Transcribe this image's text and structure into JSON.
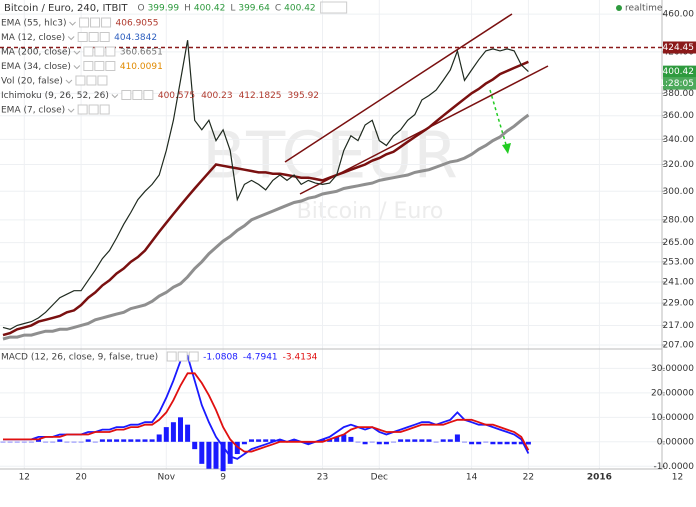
{
  "chart_data": [
    {
      "type": "line",
      "title": "Bitcoin / Euro, 240, ITBIT",
      "ohlc": [
        {
          "label": "O",
          "value": 399.99
        },
        {
          "label": "H",
          "value": 400.42
        },
        {
          "label": "L",
          "value": 399.64
        },
        {
          "label": "C",
          "value": 400.42
        }
      ],
      "status": "realtime",
      "watermark": [
        "BTCEUR",
        "Bitcoin / Euro"
      ],
      "studies": [
        {
          "name": "EMA (55, hlc3)",
          "color": "#b03a2e",
          "values": [
            406.9055
          ]
        },
        {
          "name": "MA (12, close)",
          "color": "#2e5fbf",
          "values": [
            404.3842
          ]
        },
        {
          "name": "MA (200, close)",
          "color": "#777777",
          "values": [
            360.6651
          ]
        },
        {
          "name": "EMA (34, close)",
          "color": "#e08a00",
          "values": [
            410.0091
          ]
        },
        {
          "name": "Vol (20, false)",
          "color": "#777777",
          "values": []
        },
        {
          "name": "Ichimoku (9, 26, 52, 26)",
          "color": "#b03a2e",
          "values": [
            400.575,
            400.23,
            412.1825,
            395.92
          ]
        },
        {
          "name": "EMA (7, close)",
          "color": "#777777",
          "values": []
        }
      ],
      "log_scale": true,
      "grid": true,
      "ylim": [
        205.5,
        476
      ],
      "yticks": [
        {
          "value": 460,
          "label": "460.00"
        },
        {
          "value": 420,
          "label": "420.00"
        },
        {
          "value": 380,
          "label": "380.00"
        },
        {
          "value": 360,
          "label": "360.00"
        },
        {
          "value": 340,
          "label": "340.00"
        },
        {
          "value": 320,
          "label": "320.00"
        },
        {
          "value": 300,
          "label": "300.00"
        },
        {
          "value": 280,
          "label": "280.00"
        },
        {
          "value": 265,
          "label": "265.00"
        },
        {
          "value": 253,
          "label": "253.00"
        },
        {
          "value": 241,
          "label": "241.00"
        },
        {
          "value": 229,
          "label": "229.00"
        },
        {
          "value": 217,
          "label": "217.00"
        },
        {
          "value": 207,
          "label": "207.00"
        }
      ],
      "price_tags": [
        {
          "value": 424.45,
          "color": "#8b1a1a"
        },
        {
          "value": 400.42,
          "color": "#2e9a3e",
          "countdown": "1:28:05"
        }
      ],
      "categories": [
        null,
        null,
        null,
        "12",
        null,
        null,
        null,
        null,
        null,
        null,
        null,
        "20",
        null,
        null,
        null,
        null,
        null,
        null,
        null,
        null,
        null,
        null,
        null,
        "Nov",
        null,
        null,
        null,
        null,
        null,
        null,
        null,
        "9",
        null,
        null,
        null,
        null,
        null,
        null,
        null,
        null,
        null,
        null,
        null,
        null,
        null,
        "23",
        null,
        null,
        null,
        null,
        null,
        null,
        null,
        "Dec",
        null,
        null,
        null,
        null,
        null,
        null,
        null,
        null,
        null,
        null,
        null,
        null,
        "14",
        null,
        null,
        null,
        null,
        null,
        null,
        null,
        "22",
        null,
        null,
        null,
        null,
        null,
        null,
        null,
        null,
        null,
        "2016",
        null,
        null,
        null,
        null,
        null,
        null,
        null,
        null,
        null,
        null,
        "12"
      ],
      "series": [
        {
          "color": "#8f8f8f",
          "width": 3,
          "values": [
            210,
            211,
            211,
            212,
            212,
            213,
            214,
            214,
            215,
            215,
            216,
            217,
            218,
            220,
            221,
            222,
            223,
            224,
            226,
            227,
            228,
            230,
            233,
            235,
            238,
            240,
            244,
            249,
            253,
            258,
            262,
            266,
            269,
            273,
            276,
            280,
            282,
            284,
            286,
            288,
            290,
            292,
            293,
            295,
            296,
            298,
            299,
            300,
            302,
            303,
            304,
            305,
            306,
            308,
            309,
            310,
            311,
            312,
            314,
            315,
            316,
            318,
            320,
            322,
            323,
            325,
            328,
            332,
            335,
            339,
            342,
            347,
            351,
            356,
            360.6651,
            null,
            null,
            null,
            null,
            null,
            null,
            null,
            null,
            null,
            null,
            null,
            null,
            null,
            null,
            null,
            null,
            null,
            null,
            null,
            null,
            null
          ]
        },
        {
          "color": "#7a1010",
          "width": 2.5,
          "values": [
            212,
            213,
            215,
            216,
            217,
            219,
            220,
            221,
            222,
            224,
            225,
            228,
            232,
            235,
            239,
            242,
            246,
            249,
            253,
            256,
            260,
            266,
            272,
            278,
            284,
            290,
            296,
            302,
            308,
            314,
            320,
            319,
            318,
            317,
            316,
            315,
            314,
            314,
            313,
            313,
            312,
            311,
            310,
            310,
            309,
            308,
            310,
            312,
            314,
            316,
            318,
            320,
            323,
            325,
            328,
            330,
            334,
            338,
            342,
            346,
            350,
            355,
            360,
            365,
            370,
            375,
            380,
            384,
            389,
            393,
            398,
            401,
            404,
            407,
            410.0091,
            null,
            null,
            null,
            null,
            null,
            null,
            null,
            null,
            null,
            null,
            null,
            null,
            null,
            null,
            null,
            null,
            null,
            null,
            null,
            null,
            null
          ]
        },
        {
          "color": "#1f2a1f",
          "width": 1.2,
          "values": [
            216,
            215,
            217,
            218,
            219,
            221,
            224,
            228,
            232,
            234,
            236,
            236,
            242,
            248,
            255,
            260,
            268,
            277,
            285,
            294,
            300,
            305,
            312,
            331,
            356,
            392,
            432,
            356,
            348,
            356,
            339,
            348,
            331,
            294,
            305,
            308,
            305,
            301,
            308,
            312,
            308,
            312,
            305,
            308,
            306,
            305,
            306,
            312,
            331,
            343,
            339,
            352,
            356,
            339,
            335,
            343,
            348,
            356,
            361,
            374,
            378,
            383,
            392,
            402,
            421,
            392,
            402,
            412,
            421,
            423,
            421,
            423,
            421,
            407,
            400.42,
            null,
            null,
            null,
            null,
            null,
            null,
            null,
            null,
            null,
            null,
            null,
            null,
            null,
            null,
            null,
            null,
            null,
            null,
            null,
            null,
            null
          ]
        }
      ]
    },
    {
      "type": "macd",
      "title": "MACD (12, 26, close, 9, false, true)",
      "status_values": [
        {
          "value": -1.0808,
          "color": "#1a1aff"
        },
        {
          "value": -4.7941,
          "color": "#1a1aff"
        },
        {
          "value": -3.4134,
          "color": "#e01010"
        }
      ],
      "grid": true,
      "ylim": [
        -10.7,
        37.5
      ],
      "yticks": [
        {
          "value": 30,
          "label": "30.00000"
        },
        {
          "value": 20,
          "label": "20.00000"
        },
        {
          "value": 10,
          "label": "10.00000"
        },
        {
          "value": 0,
          "label": "0.00000"
        },
        {
          "value": -10,
          "label": "-10.0000"
        }
      ],
      "series": [
        {
          "color": "#1a1aff",
          "style": "bar",
          "values": [
            0,
            0,
            0,
            0,
            0,
            1,
            0,
            0,
            1,
            0,
            0,
            0,
            1,
            0,
            1,
            1,
            1,
            1,
            1,
            1,
            1,
            1,
            3,
            6,
            8,
            10,
            7,
            -3,
            -9,
            -11,
            -11,
            -12,
            -9,
            -5,
            -1,
            1,
            1,
            1,
            1,
            1,
            0,
            1,
            0,
            -1,
            0,
            1,
            1,
            2,
            3,
            2,
            0,
            -1,
            0,
            -1,
            -1,
            0,
            1,
            1,
            1,
            1,
            1,
            0,
            1,
            1,
            3,
            0,
            -1,
            -1,
            0,
            -1,
            -1,
            -1,
            -1,
            -1,
            -1.0808,
            null,
            null,
            null,
            null,
            null,
            null,
            null,
            null,
            null,
            null,
            null,
            null,
            null,
            null,
            null,
            null,
            null,
            null,
            null,
            null,
            null
          ]
        },
        {
          "color": "#1a1aff",
          "style": "line",
          "values": [
            1,
            1,
            1,
            1,
            1,
            2,
            2,
            2,
            3,
            3,
            3,
            3,
            4,
            4,
            5,
            5,
            6,
            6,
            7,
            7,
            8,
            8,
            12,
            18,
            25,
            33,
            35,
            25,
            15,
            8,
            2,
            -2,
            -6,
            -7,
            -5,
            -3,
            -2,
            -1,
            0,
            1,
            0,
            1,
            0,
            -1,
            0,
            1,
            2,
            4,
            6,
            7,
            6,
            5,
            6,
            4,
            3,
            4,
            5,
            6,
            7,
            8,
            8,
            7,
            8,
            9,
            12,
            9,
            8,
            7,
            7,
            6,
            5,
            4,
            3,
            1,
            -4.7941,
            null,
            null,
            null,
            null,
            null,
            null,
            null,
            null,
            null,
            null,
            null,
            null,
            null,
            null,
            null,
            null,
            null,
            null,
            null,
            null,
            null
          ]
        },
        {
          "color": "#e01010",
          "style": "line",
          "values": [
            1,
            1,
            1,
            1,
            1,
            1,
            2,
            2,
            2,
            3,
            3,
            3,
            3,
            4,
            4,
            4,
            5,
            5,
            6,
            6,
            7,
            7,
            9,
            12,
            17,
            23,
            28,
            28,
            24,
            19,
            13,
            6,
            1,
            -2,
            -4,
            -4,
            -3,
            -2,
            -1,
            0,
            0,
            0,
            0,
            0,
            0,
            0,
            1,
            2,
            3,
            5,
            6,
            6,
            6,
            5,
            4,
            4,
            4,
            5,
            6,
            7,
            7,
            7,
            7,
            8,
            9,
            9,
            9,
            8,
            7,
            7,
            6,
            5,
            4,
            2,
            -3.4134,
            null,
            null,
            null,
            null,
            null,
            null,
            null,
            null,
            null,
            null,
            null,
            null,
            null,
            null,
            null,
            null,
            null,
            null,
            null,
            null,
            null
          ]
        }
      ]
    }
  ]
}
